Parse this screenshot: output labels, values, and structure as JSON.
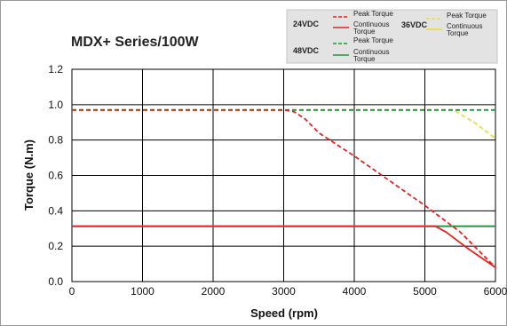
{
  "chart_data": {
    "type": "line",
    "title": "MDX+ Series/100W",
    "xlabel": "Speed (rpm)",
    "ylabel": "Torque (N.m)",
    "xlim": [
      0,
      6000
    ],
    "ylim": [
      0,
      1.2
    ],
    "xticks": [
      0,
      1000,
      2000,
      3000,
      4000,
      5000,
      6000
    ],
    "yticks": [
      0.0,
      0.2,
      0.4,
      0.6,
      0.8,
      1.0,
      1.2
    ],
    "ytick_labels": [
      "0.0",
      "0.2",
      "0.4",
      "0.6",
      "0.8",
      "1.0",
      "1.2"
    ],
    "grid": true,
    "legend_position": "top-right",
    "legend": {
      "groups": [
        {
          "label": "24VDC",
          "entries": [
            {
              "name": "Peak Torque",
              "color": "#e8231f",
              "dash": true
            },
            {
              "name": "Continuous Torque",
              "color": "#e8231f",
              "dash": false
            }
          ]
        },
        {
          "label": "48VDC",
          "entries": [
            {
              "name": "Peak Torque",
              "color": "#1a9a3a",
              "dash": true
            },
            {
              "name": "Continuous Torque",
              "color": "#1a9a3a",
              "dash": false
            }
          ]
        },
        {
          "label": "36VDC",
          "entries": [
            {
              "name": "Peak Torque",
              "color": "#e6e044",
              "dash": true
            },
            {
              "name": "Continuous Torque",
              "color": "#e6e044",
              "dash": false
            }
          ]
        }
      ]
    },
    "series": [
      {
        "group": "36VDC",
        "kind": "Peak Torque",
        "color": "#e6e044",
        "dash": true,
        "points": [
          [
            0,
            0.97
          ],
          [
            5400,
            0.97
          ],
          [
            5700,
            0.9
          ],
          [
            6000,
            0.81
          ]
        ]
      },
      {
        "group": "36VDC",
        "kind": "Continuous Torque",
        "color": "#e6e044",
        "dash": false,
        "points": [
          [
            0,
            0.313
          ],
          [
            5200,
            0.313
          ],
          [
            6000,
            0.313
          ]
        ]
      },
      {
        "group": "48VDC",
        "kind": "Peak Torque",
        "color": "#1a9a3a",
        "dash": true,
        "points": [
          [
            0,
            0.97
          ],
          [
            6000,
            0.97
          ]
        ]
      },
      {
        "group": "48VDC",
        "kind": "Continuous Torque",
        "color": "#1a9a3a",
        "dash": false,
        "points": [
          [
            0,
            0.313
          ],
          [
            6000,
            0.313
          ]
        ]
      },
      {
        "group": "24VDC",
        "kind": "Peak Torque",
        "color": "#e8231f",
        "dash": true,
        "points": [
          [
            0,
            0.97
          ],
          [
            3000,
            0.97
          ],
          [
            3150,
            0.96
          ],
          [
            3300,
            0.92
          ],
          [
            3500,
            0.84
          ],
          [
            4000,
            0.71
          ],
          [
            4500,
            0.57
          ],
          [
            5000,
            0.43
          ],
          [
            5500,
            0.28
          ],
          [
            6000,
            0.08
          ]
        ]
      },
      {
        "group": "24VDC",
        "kind": "Continuous Torque",
        "color": "#e8231f",
        "dash": false,
        "points": [
          [
            0,
            0.313
          ],
          [
            5150,
            0.313
          ],
          [
            5300,
            0.28
          ],
          [
            5600,
            0.19
          ],
          [
            6000,
            0.08
          ]
        ]
      }
    ]
  }
}
